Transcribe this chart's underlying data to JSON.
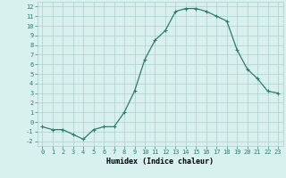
{
  "x": [
    0,
    1,
    2,
    3,
    4,
    5,
    6,
    7,
    8,
    9,
    10,
    11,
    12,
    13,
    14,
    15,
    16,
    17,
    18,
    19,
    20,
    21,
    22,
    23
  ],
  "y": [
    -0.5,
    -0.8,
    -0.8,
    -1.3,
    -1.8,
    -0.8,
    -0.5,
    -0.5,
    1.0,
    3.2,
    6.5,
    8.5,
    9.5,
    11.5,
    11.8,
    11.8,
    11.5,
    11.0,
    10.5,
    7.5,
    5.5,
    4.5,
    3.2,
    3.0
  ],
  "line_color": "#2d7b6e",
  "marker": "+",
  "marker_size": 3,
  "marker_lw": 0.8,
  "line_width": 0.9,
  "bg_color": "#d8f0ee",
  "grid_color": "#aecfcc",
  "xlabel": "Humidex (Indice chaleur)",
  "xlim": [
    -0.5,
    23.5
  ],
  "ylim": [
    -2.5,
    12.5
  ],
  "xticks": [
    0,
    1,
    2,
    3,
    4,
    5,
    6,
    7,
    8,
    9,
    10,
    11,
    12,
    13,
    14,
    15,
    16,
    17,
    18,
    19,
    20,
    21,
    22,
    23
  ],
  "yticks": [
    -2,
    -1,
    0,
    1,
    2,
    3,
    4,
    5,
    6,
    7,
    8,
    9,
    10,
    11,
    12
  ],
  "tick_fontsize": 5,
  "xlabel_fontsize": 6
}
